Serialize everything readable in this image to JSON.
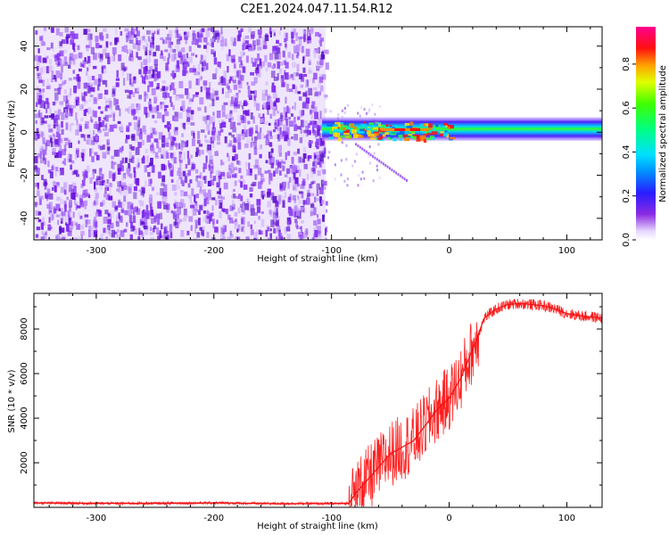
{
  "title": "C2E1.2024.047.11.54.R12",
  "chart_data": [
    {
      "type": "heatmap",
      "xlabel": "Height of straight line (km)",
      "ylabel": "Frequency (Hz)",
      "xlim": [
        -353,
        130
      ],
      "ylim": [
        -50,
        49
      ],
      "xticks": [
        -300,
        -200,
        -100,
        0,
        100
      ],
      "yticks": [
        -40,
        -20,
        0,
        20,
        40
      ],
      "colorbar": {
        "label": "Normalized spectral amplitude",
        "range": [
          0,
          0.97
        ],
        "ticks": [
          0.0,
          0.2,
          0.4,
          0.6,
          0.8
        ],
        "colormap": "rainbow: white-purple-blue-cyan-green-yellow-red-magenta"
      },
      "description_values": {
        "noise_region_x": [
          -353,
          -105
        ],
        "signal_band_frequency_hz": 1,
        "signal_band_x": [
          -108,
          130
        ],
        "signal_band_amplitude": 0.55,
        "peak_amplitude_x": [
          -60,
          -20
        ],
        "peak_amplitude": 0.97
      }
    },
    {
      "type": "line",
      "xlabel": "Height of straight line (km)",
      "ylabel": "SNR (10 * v/v)",
      "xlim": [
        -353,
        130
      ],
      "ylim": [
        0,
        9600
      ],
      "xticks": [
        -300,
        -200,
        -100,
        0,
        100
      ],
      "yticks": [
        2000,
        4000,
        6000,
        8000
      ],
      "color": "#ff2020",
      "series": [
        {
          "x": [
            -353,
            -300,
            -250,
            -200,
            -150,
            -100,
            -85,
            -80,
            -70,
            -60,
            -50,
            -40,
            -30,
            -20,
            -10,
            0,
            10,
            20,
            30,
            40,
            50,
            60,
            70,
            80,
            90,
            100,
            110,
            120,
            130
          ],
          "values": [
            200,
            180,
            180,
            200,
            170,
            170,
            180,
            600,
            1200,
            1800,
            2400,
            2700,
            3000,
            3700,
            4400,
            4900,
            5800,
            7100,
            8500,
            8900,
            9100,
            9150,
            9100,
            9050,
            8900,
            8700,
            8600,
            8550,
            8500
          ]
        }
      ]
    }
  ]
}
